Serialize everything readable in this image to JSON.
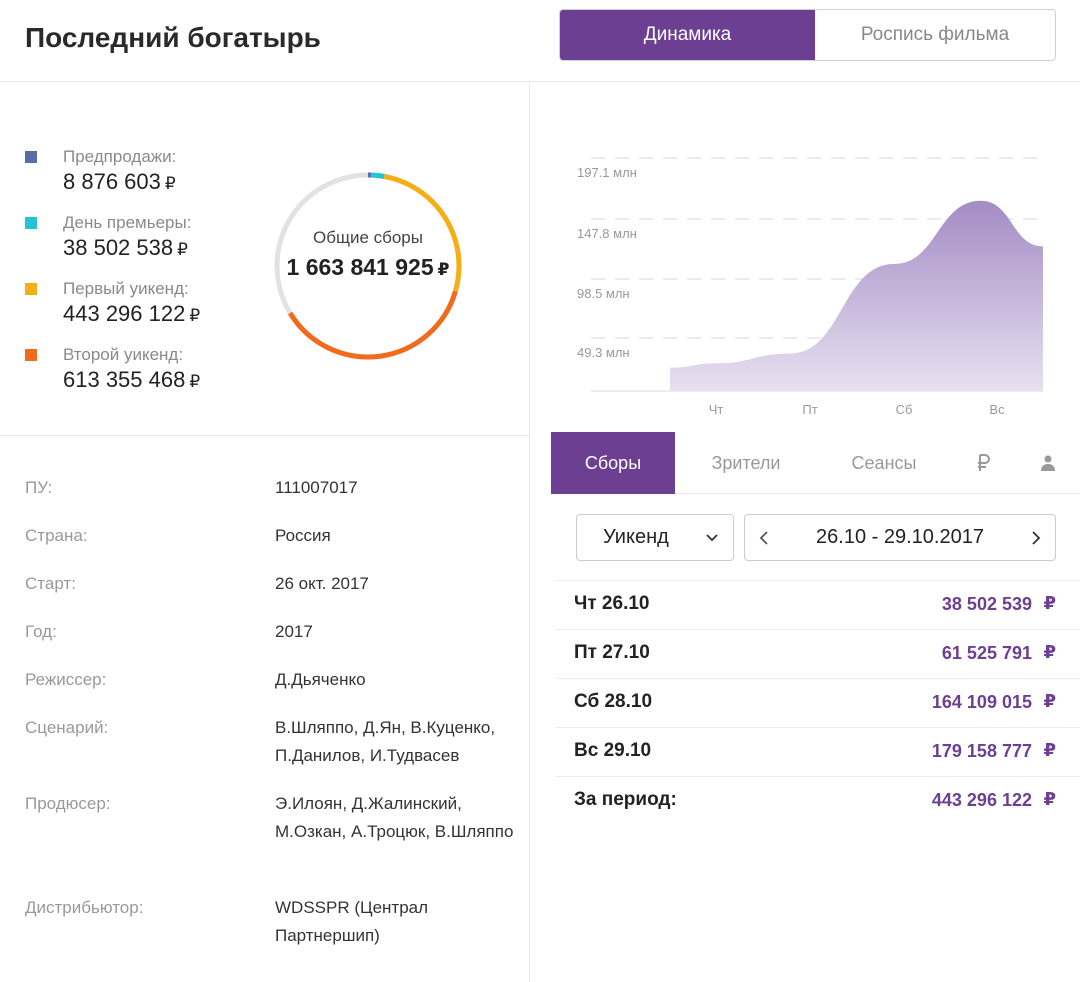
{
  "film": {
    "title": "Последний богатырь"
  },
  "view_switch": {
    "active": "Динамика",
    "inactive": "Роспись фильма"
  },
  "currency_symbol": "₽",
  "legend": [
    {
      "label": "Предпродажи:",
      "value": "8 876 603",
      "color": "#5b6aa8"
    },
    {
      "label": "День премьеры:",
      "value": "38 502 538",
      "color": "#23c3d6"
    },
    {
      "label": "Первый уикенд:",
      "value": "443 296 122",
      "color": "#f5ae15"
    },
    {
      "label": "Второй уикенд:",
      "value": "613 355 468",
      "color": "#f26a1b"
    }
  ],
  "totals": {
    "label": "Общие сборы",
    "value": "1 663 841 925"
  },
  "info": [
    {
      "key": "ПУ:",
      "value": "111007017"
    },
    {
      "key": "Страна:",
      "value": "Россия"
    },
    {
      "key": "Старт:",
      "value": "26 окт. 2017"
    },
    {
      "key": "Год:",
      "value": "2017"
    },
    {
      "key": "Режиссер:",
      "value": "Д.Дьяченко"
    },
    {
      "key": "Сценарий:",
      "value": "В.Шляппо, Д.Ян, В.Куценко, П.Данилов, И.Тудвасев"
    },
    {
      "key": "Продюсер:",
      "value": "Э.Илоян, Д.Жалинский, М.Озкан, А.Троцюк, В.Шляппо"
    },
    {
      "key": "Дистрибьютор:",
      "value": "WDSSPR (Централ Партнершип)"
    }
  ],
  "chart_data": {
    "type": "area",
    "x": [
      "Чт",
      "Пт",
      "Сб",
      "Вс"
    ],
    "y_ticks": [
      "197.1 млн",
      "147.8 млн",
      "98.5 млн",
      "49.3 млн"
    ],
    "values": [
      38502539,
      61525791,
      164109015,
      179158777
    ],
    "color": "#a48cc4",
    "grid": true
  },
  "tabs": [
    "Сборы",
    "Зрители",
    "Сеансы"
  ],
  "tab_icons": [
    "ruble-icon",
    "person-icon"
  ],
  "period_select": {
    "value": "Уикенд"
  },
  "date_range": {
    "text": "26.10 - 29.10.2017"
  },
  "rows": [
    {
      "day": "Чт 26.10",
      "value": "38 502 539"
    },
    {
      "day": "Пт 27.10",
      "value": "61 525 791"
    },
    {
      "day": "Сб 28.10",
      "value": "164 109 015"
    },
    {
      "day": "Вс 29.10",
      "value": "179 158 777"
    },
    {
      "day": "За период:",
      "value": "443 296 122"
    }
  ],
  "accent_color": "#6d3f93"
}
